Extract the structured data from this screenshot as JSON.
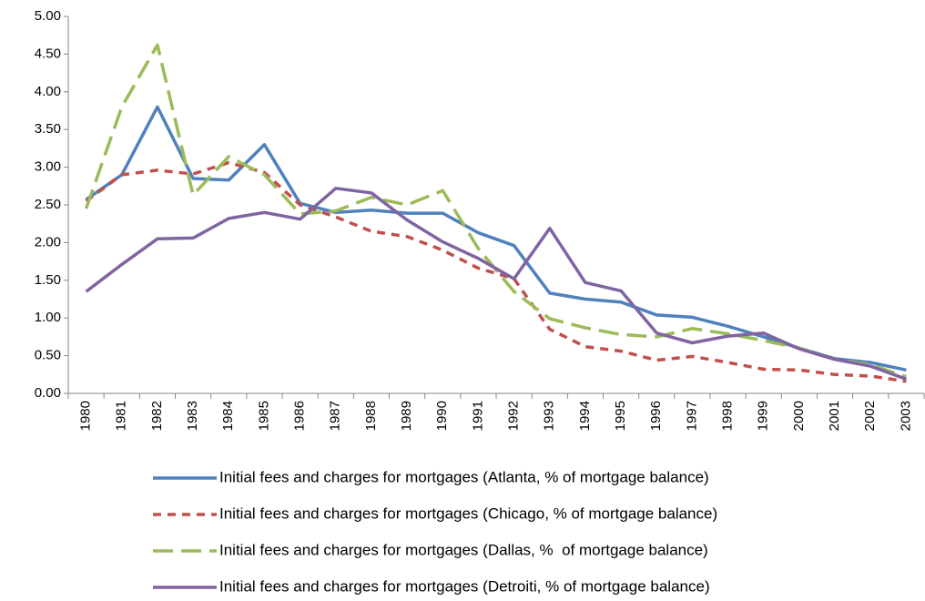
{
  "chart_data": {
    "type": "line",
    "categories": [
      "1980",
      "1981",
      "1982",
      "1983",
      "1984",
      "1985",
      "1986",
      "1987",
      "1988",
      "1989",
      "1990",
      "1991",
      "1992",
      "1993",
      "1994",
      "1995",
      "1996",
      "1997",
      "1998",
      "1999",
      "2000",
      "2001",
      "2002",
      "2003"
    ],
    "series": [
      {
        "name": "Initial fees and charges for mortgages (Atlanta, % of mortgage balance)",
        "color": "#4f81bd",
        "dash": "solid",
        "values": [
          2.57,
          2.9,
          3.8,
          2.85,
          2.83,
          3.3,
          2.52,
          2.4,
          2.43,
          2.39,
          2.39,
          2.13,
          1.96,
          1.33,
          1.25,
          1.21,
          1.04,
          1.01,
          0.89,
          0.75,
          0.6,
          0.46,
          0.41,
          0.31
        ]
      },
      {
        "name": "Initial fees and charges for mortgages (Chicago, % of mortgage balance)",
        "color": "#c0504d",
        "dash": "dash",
        "values": [
          2.55,
          2.9,
          2.96,
          2.91,
          3.06,
          2.93,
          2.5,
          2.34,
          2.15,
          2.08,
          1.9,
          1.66,
          1.52,
          0.85,
          0.62,
          0.56,
          0.44,
          0.49,
          0.41,
          0.32,
          0.31,
          0.25,
          0.23,
          0.16
        ]
      },
      {
        "name": "Initial fees and charges for mortgages (Dallas, %  of mortgage balance)",
        "color": "#9bbb59",
        "dash": "longdash",
        "values": [
          2.45,
          3.8,
          4.62,
          2.63,
          3.14,
          2.9,
          2.38,
          2.42,
          2.6,
          2.5,
          2.69,
          1.92,
          1.35,
          0.99,
          0.87,
          0.78,
          0.75,
          0.86,
          0.79,
          0.7,
          0.6,
          0.45,
          0.38,
          0.22
        ]
      },
      {
        "name": "Initial fees and charges for mortgages (Detroiti, % of mortgage balance)",
        "color": "#8064a2",
        "dash": "solid",
        "values": [
          1.35,
          1.71,
          2.05,
          2.06,
          2.32,
          2.4,
          2.31,
          2.72,
          2.66,
          2.3,
          2.01,
          1.79,
          1.52,
          2.19,
          1.47,
          1.36,
          0.8,
          0.67,
          0.76,
          0.8,
          0.59,
          0.45,
          0.36,
          0.19
        ]
      }
    ],
    "ylim": [
      0,
      5
    ],
    "yticks": [
      {
        "value": 0,
        "label": "0.00"
      },
      {
        "value": 0.5,
        "label": "0.50"
      },
      {
        "value": 1,
        "label": "1.00"
      },
      {
        "value": 1.5,
        "label": "1.50"
      },
      {
        "value": 2,
        "label": "2.00"
      },
      {
        "value": 2.5,
        "label": "2.50"
      },
      {
        "value": 3,
        "label": "3.00"
      },
      {
        "value": 3.5,
        "label": "3.50"
      },
      {
        "value": 4,
        "label": "4.00"
      },
      {
        "value": 4.5,
        "label": "4.50"
      },
      {
        "value": 5,
        "label": "5.00"
      }
    ],
    "grid": false,
    "legend": "bottom"
  }
}
